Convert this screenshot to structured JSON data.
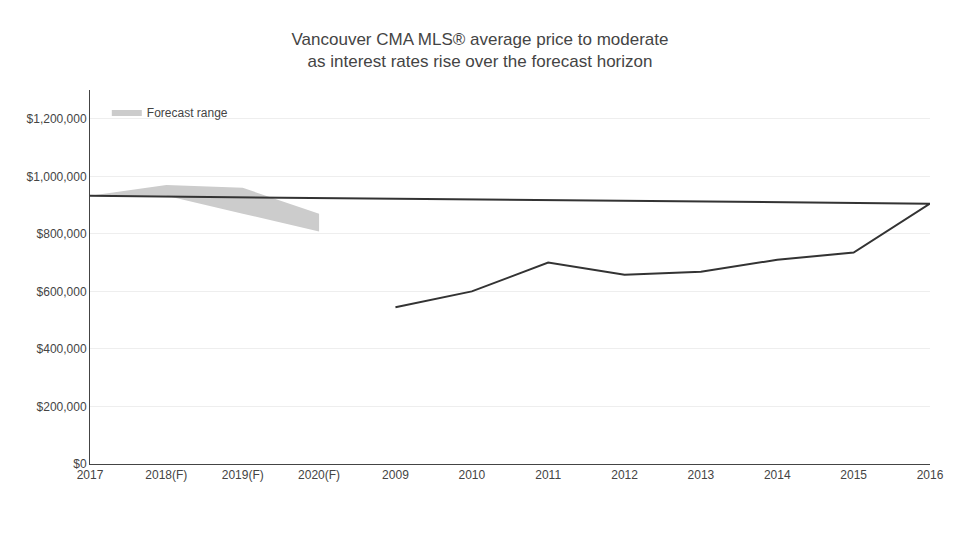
{
  "chart_data": {
    "type": "line",
    "title": "Vancouver CMA MLS® average price to moderate\nas interest rates rise over the forecast horizon",
    "categories": [
      "2009",
      "2010",
      "2011",
      "2012",
      "2013",
      "2014",
      "2015",
      "2016",
      "2017",
      "2018(F)",
      "2019(F)",
      "2020(F)"
    ],
    "series": [
      {
        "type": "line",
        "color": "#333333",
        "values": [
          545000,
          600000,
          700000,
          658000,
          668000,
          710000,
          735000,
          905000,
          932000,
          null,
          null,
          null
        ]
      },
      {
        "type": "band",
        "name": "Forecast range",
        "color": "#cccccc",
        "low": [
          null,
          null,
          null,
          null,
          null,
          null,
          null,
          null,
          932000,
          932000,
          870000,
          808000
        ],
        "high": [
          null,
          null,
          null,
          null,
          null,
          null,
          null,
          null,
          932000,
          970000,
          960000,
          870000
        ]
      }
    ],
    "ylim": [
      0,
      1300000
    ],
    "yticks": [
      {
        "value": 0,
        "label": "$0"
      },
      {
        "value": 200000,
        "label": "$200,000"
      },
      {
        "value": 400000,
        "label": "$400,000"
      },
      {
        "value": 600000,
        "label": "$600,000"
      },
      {
        "value": 800000,
        "label": "$800,000"
      },
      {
        "value": 1000000,
        "label": "$1,000,000"
      },
      {
        "value": 1200000,
        "label": "$1,200,000"
      }
    ],
    "grid": true,
    "legend": "upper left"
  }
}
